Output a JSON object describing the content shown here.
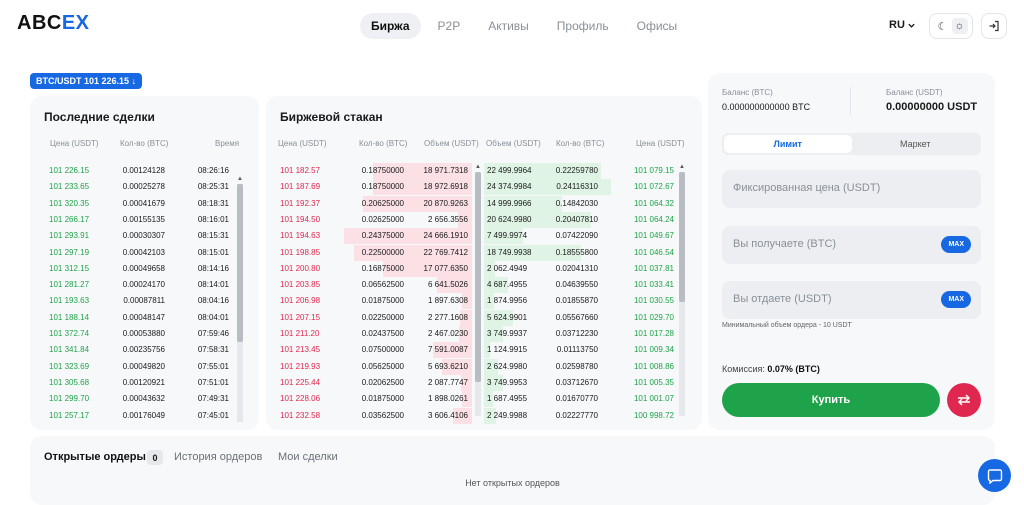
{
  "brand": {
    "logo_main": "ABC",
    "logo_accent": "EX"
  },
  "nav": [
    "Биржа",
    "P2P",
    "Активы",
    "Профиль",
    "Офисы"
  ],
  "header": {
    "lang": "RU",
    "lang_icon": "chevron-down-icon",
    "theme_icons": [
      "moon-icon",
      "sun-icon"
    ],
    "login_icon": "login-icon"
  },
  "pair_selector": {
    "label": "BTC/USDT 101 226.15",
    "arrow": "↓"
  },
  "trades": {
    "title": "Последние сделки",
    "headers": [
      "Цена (USDT)",
      "Кол-во (BTC)",
      "Время"
    ],
    "rows": [
      [
        "101 226.15",
        "0.00124128",
        "08:26:16"
      ],
      [
        "101 233.65",
        "0.00025278",
        "08:25:31"
      ],
      [
        "101 320.35",
        "0.00041679",
        "08:18:31"
      ],
      [
        "101 266.17",
        "0.00155135",
        "08:16:01"
      ],
      [
        "101 293.91",
        "0.00030307",
        "08:15:31"
      ],
      [
        "101 297.19",
        "0.00042103",
        "08:15:01"
      ],
      [
        "101 312.15",
        "0.00049658",
        "08:14:16"
      ],
      [
        "101 281.27",
        "0.00024170",
        "08:14:01"
      ],
      [
        "101 193.63",
        "0.00087811",
        "08:04:16"
      ],
      [
        "101 188.14",
        "0.00048147",
        "08:04:01"
      ],
      [
        "101 372.74",
        "0.00053880",
        "07:59:46"
      ],
      [
        "101 341.84",
        "0.00235756",
        "07:58:31"
      ],
      [
        "101 323.69",
        "0.00049820",
        "07:55:01"
      ],
      [
        "101 305.68",
        "0.00120921",
        "07:51:01"
      ],
      [
        "101 299.70",
        "0.00043632",
        "07:49:31"
      ],
      [
        "101 257.17",
        "0.00176049",
        "07:45:01"
      ]
    ]
  },
  "book": {
    "title": "Биржевой стакан",
    "headers": [
      "Цена (USDT)",
      "Кол-во (BTC)",
      "Объем (USDT)",
      "Объем (USDT)",
      "Кол-во (BTC)",
      "Цена (USDT)"
    ],
    "asks": [
      [
        "101 182.57",
        "0.18750000",
        "18 971.7318"
      ],
      [
        "101 187.69",
        "0.18750000",
        "18 972.6918"
      ],
      [
        "101 192.37",
        "0.20625000",
        "20 870.9263"
      ],
      [
        "101 194.50",
        "0.02625000",
        "2 656.3556"
      ],
      [
        "101 194.63",
        "0.24375000",
        "24 666.1910"
      ],
      [
        "101 198.85",
        "0.22500000",
        "22 769.7412"
      ],
      [
        "101 200.80",
        "0.16875000",
        "17 077.6350"
      ],
      [
        "101 203.85",
        "0.06562500",
        "6 641.5026"
      ],
      [
        "101 206.98",
        "0.01875000",
        "1 897.6308"
      ],
      [
        "101 207.15",
        "0.02250000",
        "2 277.1608"
      ],
      [
        "101 211.20",
        "0.02437500",
        "2 467.0230"
      ],
      [
        "101 213.45",
        "0.07500000",
        "7 591.0087"
      ],
      [
        "101 219.93",
        "0.05625000",
        "5 693.6210"
      ],
      [
        "101 225.44",
        "0.02062500",
        "2 087.7747"
      ],
      [
        "101 228.06",
        "0.01875000",
        "1 898.0261"
      ],
      [
        "101 232.58",
        "0.03562500",
        "3 606.4106"
      ]
    ],
    "bids": [
      [
        "22 499.9964",
        "0.22259780",
        "101 079.15"
      ],
      [
        "24 374.9984",
        "0.24116310",
        "101 072.67"
      ],
      [
        "14 999.9966",
        "0.14842030",
        "101 064.32"
      ],
      [
        "20 624.9980",
        "0.20407810",
        "101 064.24"
      ],
      [
        "7 499.9974",
        "0.07422090",
        "101 049.67"
      ],
      [
        "18 749.9938",
        "0.18555800",
        "101 046.54"
      ],
      [
        "2 062.4949",
        "0.02041310",
        "101 037.81"
      ],
      [
        "4 687.4955",
        "0.04639550",
        "101 033.41"
      ],
      [
        "1 874.9956",
        "0.01855870",
        "101 030.55"
      ],
      [
        "5 624.9901",
        "0.05567660",
        "101 029.70"
      ],
      [
        "3 749.9937",
        "0.03712230",
        "101 017.28"
      ],
      [
        "1 124.9915",
        "0.01113750",
        "101 009.34"
      ],
      [
        "2 624.9980",
        "0.02598780",
        "101 008.86"
      ],
      [
        "3 749.9953",
        "0.03712670",
        "101 005.35"
      ],
      [
        "1 687.4955",
        "0.01670770",
        "101 001.07"
      ],
      [
        "2 249.9988",
        "0.02227770",
        "100 998.72"
      ]
    ]
  },
  "form": {
    "bal_btc_label": "Баланс (BTC)",
    "bal_btc_value": "0.000000000000 BTC",
    "bal_usdt_label": "Баланс (USDT)",
    "bal_usdt_value": "0.00000000 USDT",
    "tabs": [
      "Лимит",
      "Маркет"
    ],
    "price_placeholder": "Фиксированная цена (USDT)",
    "receive_placeholder": "Вы получаете (BTC)",
    "give_placeholder": "Вы отдаете (USDT)",
    "max_label": "MAX",
    "min_order": "Минимальный объем ордера - 10 USDT",
    "fee_label": "Комиссия:",
    "fee_value": "0.07% (BTC)",
    "buy_label": "Купить",
    "swap_icon": "swap-icon"
  },
  "orders": {
    "tabs": [
      "Открытые ордеры",
      "История ордеров",
      "Мои сделки"
    ],
    "count": "0",
    "empty": "Нет открытых ордеров"
  },
  "colors": {
    "accent": "#1668e3",
    "buy": "#1fa34a",
    "sell": "#e0274f"
  }
}
